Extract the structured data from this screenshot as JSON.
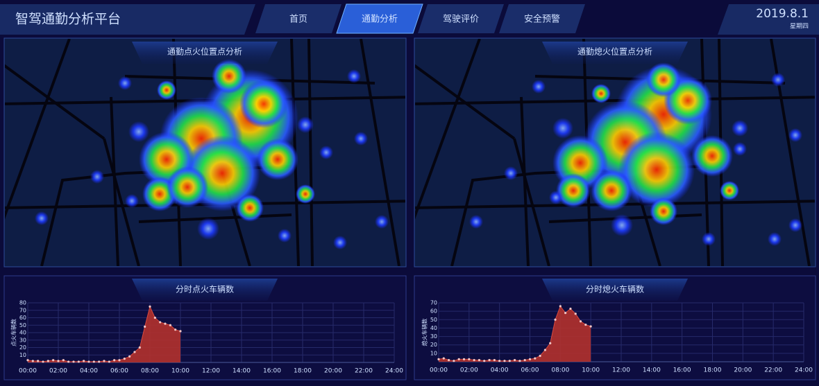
{
  "header": {
    "title": "智驾通勤分析平台",
    "date": "2019.8.1",
    "weekday": "星期四"
  },
  "nav": [
    "首页",
    "通勤分析",
    "驾驶评价",
    "安全预警"
  ],
  "heatmaps": [
    {
      "title": "通勤点火位置点分析"
    },
    {
      "title": "通勤熄火位置点分析"
    }
  ],
  "chart_data": [
    {
      "type": "area",
      "title": "分时点火车辆数",
      "y_label": "点火车辆数",
      "color": "#b3312c",
      "point_color": "#f3c6c6",
      "x": [
        0,
        20,
        40,
        60,
        80,
        100,
        120,
        140,
        160,
        180,
        200,
        220,
        240,
        260,
        280,
        300,
        320,
        340,
        360,
        380,
        400,
        420,
        440,
        460,
        480,
        500,
        520,
        540,
        560,
        580,
        600
      ],
      "values": [
        3,
        2,
        2,
        1,
        2,
        3,
        2,
        3,
        1,
        1,
        1,
        2,
        1,
        1,
        1,
        2,
        1,
        3,
        3,
        5,
        8,
        14,
        20,
        48,
        75,
        60,
        54,
        52,
        50,
        44,
        42
      ],
      "xlim": [
        0,
        1440
      ],
      "xticks": [
        {
          "value": 0,
          "label": "00:00"
        },
        {
          "value": 120,
          "label": "02:00"
        },
        {
          "value": 240,
          "label": "04:00"
        },
        {
          "value": 360,
          "label": "06:00"
        },
        {
          "value": 480,
          "label": "08:00"
        },
        {
          "value": 600,
          "label": "10:00"
        },
        {
          "value": 720,
          "label": "12:00"
        },
        {
          "value": 840,
          "label": "14:00"
        },
        {
          "value": 960,
          "label": "16:00"
        },
        {
          "value": 1080,
          "label": "18:00"
        },
        {
          "value": 1200,
          "label": "20:00"
        },
        {
          "value": 1320,
          "label": "22:00"
        },
        {
          "value": 1440,
          "label": "24:00"
        }
      ],
      "ylim": [
        0,
        80
      ],
      "yticks": [
        10,
        20,
        30,
        40,
        50,
        60,
        70,
        80
      ],
      "grid": true
    },
    {
      "type": "area",
      "title": "分时熄火车辆数",
      "y_label": "熄火车辆数",
      "color": "#b3312c",
      "point_color": "#f3c6c6",
      "x": [
        0,
        20,
        40,
        60,
        80,
        100,
        120,
        140,
        160,
        180,
        200,
        220,
        240,
        260,
        280,
        300,
        320,
        340,
        360,
        380,
        400,
        420,
        440,
        460,
        480,
        500,
        520,
        540,
        560,
        580,
        600
      ],
      "values": [
        3,
        4,
        2,
        1,
        3,
        3,
        3,
        2,
        2,
        1,
        2,
        2,
        1,
        1,
        1,
        2,
        1,
        2,
        3,
        4,
        7,
        14,
        22,
        50,
        66,
        58,
        63,
        57,
        48,
        44,
        42
      ],
      "xlim": [
        0,
        1440
      ],
      "xticks": [
        {
          "value": 0,
          "label": "00:00"
        },
        {
          "value": 120,
          "label": "02:00"
        },
        {
          "value": 240,
          "label": "04:00"
        },
        {
          "value": 360,
          "label": "06:00"
        },
        {
          "value": 480,
          "label": "08:00"
        },
        {
          "value": 600,
          "label": "10:00"
        },
        {
          "value": 720,
          "label": "12:00"
        },
        {
          "value": 840,
          "label": "14:00"
        },
        {
          "value": 960,
          "label": "16:00"
        },
        {
          "value": 1080,
          "label": "18:00"
        },
        {
          "value": 1200,
          "label": "20:00"
        },
        {
          "value": 1320,
          "label": "22:00"
        },
        {
          "value": 1440,
          "label": "24:00"
        }
      ],
      "ylim": [
        0,
        70
      ],
      "yticks": [
        10,
        20,
        30,
        40,
        50,
        60,
        70
      ],
      "grid": true
    }
  ]
}
